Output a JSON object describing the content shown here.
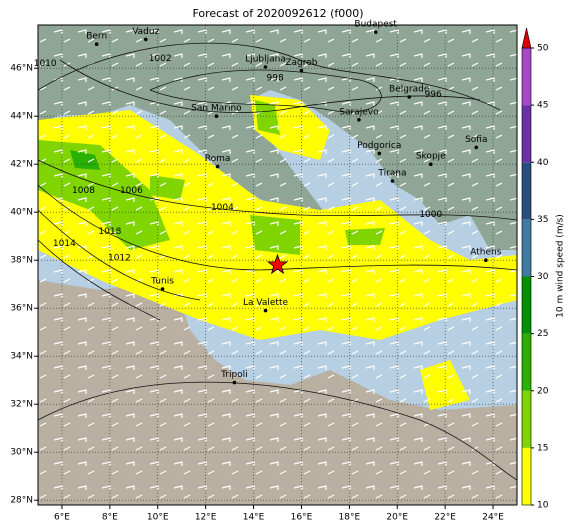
{
  "chart_data": {
    "type": "map",
    "title": "Forecast of 2020092612 (f000)",
    "lonlim": [
      5,
      25
    ],
    "latlim": [
      27.8,
      47.8
    ],
    "xticks": [
      {
        "value": 6,
        "label": "6°E"
      },
      {
        "value": 8,
        "label": "8°E"
      },
      {
        "value": 10,
        "label": "10°E"
      },
      {
        "value": 12,
        "label": "12°E"
      },
      {
        "value": 14,
        "label": "14°E"
      },
      {
        "value": 16,
        "label": "16°E"
      },
      {
        "value": 18,
        "label": "18°E"
      },
      {
        "value": 20,
        "label": "20°E"
      },
      {
        "value": 22,
        "label": "22°E"
      },
      {
        "value": 24,
        "label": "24°E"
      }
    ],
    "yticks": [
      {
        "value": 28,
        "label": "28°N"
      },
      {
        "value": 30,
        "label": "30°N"
      },
      {
        "value": 32,
        "label": "32°N"
      },
      {
        "value": 34,
        "label": "34°N"
      },
      {
        "value": 36,
        "label": "36°N"
      },
      {
        "value": 38,
        "label": "38°N"
      },
      {
        "value": 40,
        "label": "40°N"
      },
      {
        "value": 42,
        "label": "42°N"
      },
      {
        "value": 44,
        "label": "44°N"
      },
      {
        "value": 46,
        "label": "46°N"
      }
    ],
    "grid": true,
    "cities": [
      {
        "name": "Bern",
        "lon": 7.45,
        "lat": 47.0
      },
      {
        "name": "Vaduz",
        "lon": 9.5,
        "lat": 47.2
      },
      {
        "name": "Budapest",
        "lon": 19.1,
        "lat": 47.5
      },
      {
        "name": "Ljubljana",
        "lon": 14.5,
        "lat": 46.05
      },
      {
        "name": "Zagreb",
        "lon": 16.0,
        "lat": 45.9
      },
      {
        "name": "San Marino",
        "lon": 12.45,
        "lat": 44.0
      },
      {
        "name": "Belgrade",
        "lon": 20.5,
        "lat": 44.8
      },
      {
        "name": "Sarajevo",
        "lon": 18.4,
        "lat": 43.85
      },
      {
        "name": "Roma",
        "lon": 12.5,
        "lat": 41.9
      },
      {
        "name": "Podgorica",
        "lon": 19.25,
        "lat": 42.45
      },
      {
        "name": "Skopje",
        "lon": 21.4,
        "lat": 42.0
      },
      {
        "name": "Sofia",
        "lon": 23.3,
        "lat": 42.7
      },
      {
        "name": "Tirana",
        "lon": 19.8,
        "lat": 41.3
      },
      {
        "name": "Tunis",
        "lon": 10.2,
        "lat": 36.8
      },
      {
        "name": "La Valette",
        "lon": 14.5,
        "lat": 35.9
      },
      {
        "name": "Athens",
        "lon": 23.7,
        "lat": 38.0
      },
      {
        "name": "Tripoli",
        "lon": 13.2,
        "lat": 32.9
      }
    ],
    "isobar_labels": [
      {
        "label": "1010",
        "lon": 5.3,
        "lat": 46.2
      },
      {
        "label": "1002",
        "lon": 10.1,
        "lat": 46.4
      },
      {
        "label": "998",
        "lon": 14.9,
        "lat": 45.6
      },
      {
        "label": "996",
        "lon": 21.5,
        "lat": 44.9
      },
      {
        "label": "1004",
        "lon": 12.7,
        "lat": 40.2
      },
      {
        "label": "1000",
        "lon": 21.4,
        "lat": 39.9
      },
      {
        "label": "1008",
        "lon": 6.9,
        "lat": 40.9
      },
      {
        "label": "1006",
        "lon": 8.9,
        "lat": 40.9
      },
      {
        "label": "1018",
        "lon": 8.0,
        "lat": 39.2
      },
      {
        "label": "1012",
        "lon": 8.4,
        "lat": 38.1
      },
      {
        "label": "1014",
        "lon": 6.1,
        "lat": 38.7
      }
    ],
    "marker": {
      "lon": 15.0,
      "lat": 37.8,
      "color": "#ff0000"
    },
    "colorbar": {
      "label": "10 m wind speed (m/s)",
      "lim": [
        10,
        50
      ],
      "ticks": [
        10,
        15,
        20,
        25,
        30,
        35,
        40,
        45,
        50
      ],
      "colors": [
        "#ffff00",
        "#80d400",
        "#2ab000",
        "#009000",
        "#3f7aa0",
        "#284e80",
        "#6a30a8",
        "#a848c8"
      ],
      "extend_color": "#dd0000"
    }
  }
}
